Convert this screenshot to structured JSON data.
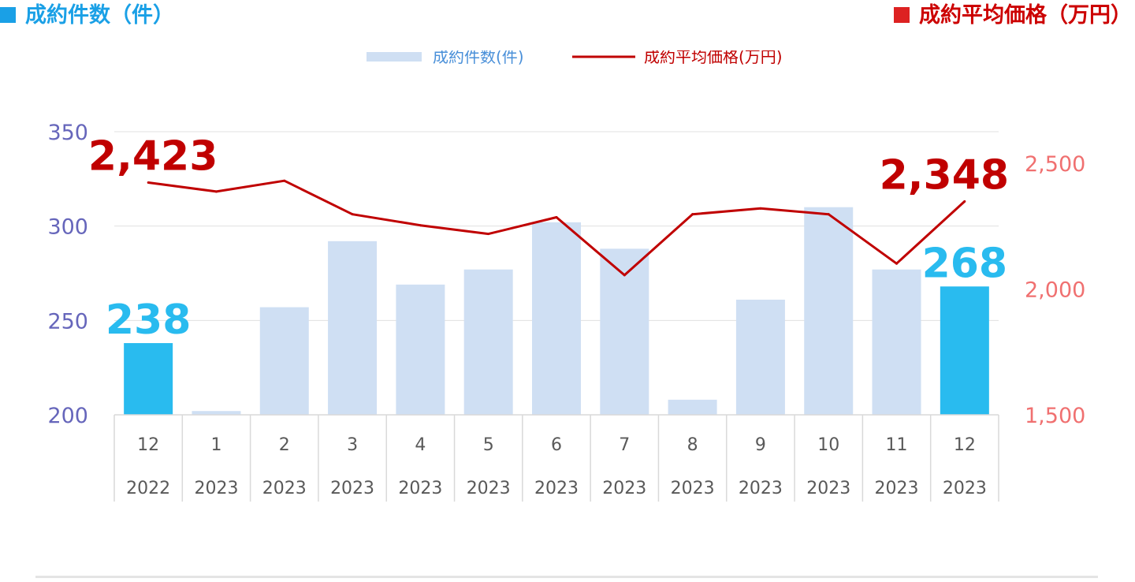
{
  "header": {
    "left_title": "成約件数（件）",
    "right_title": "成約平均価格（万円）"
  },
  "colors": {
    "bar_light": "#cfdff3",
    "bar_highlight": "#29bbef",
    "line": "#c00000",
    "left_axis_text": "#6666bb",
    "right_axis_text": "#f07070",
    "grid": "#e0e0e0"
  },
  "chart_data": {
    "type": "bar",
    "legend": {
      "bar_label": "成約件数(件)",
      "line_label": "成約平均価格(万円)",
      "position": "top"
    },
    "categories": [
      {
        "month": "12",
        "year": "2022"
      },
      {
        "month": "1",
        "year": "2023"
      },
      {
        "month": "2",
        "year": "2023"
      },
      {
        "month": "3",
        "year": "2023"
      },
      {
        "month": "4",
        "year": "2023"
      },
      {
        "month": "5",
        "year": "2023"
      },
      {
        "month": "6",
        "year": "2023"
      },
      {
        "month": "7",
        "year": "2023"
      },
      {
        "month": "8",
        "year": "2023"
      },
      {
        "month": "9",
        "year": "2023"
      },
      {
        "month": "10",
        "year": "2023"
      },
      {
        "month": "11",
        "year": "2023"
      },
      {
        "month": "12",
        "year": "2023"
      }
    ],
    "series": [
      {
        "name": "成約件数(件)",
        "type": "bar",
        "axis": "left",
        "values": [
          238,
          202,
          257,
          292,
          269,
          277,
          302,
          288,
          208,
          261,
          310,
          277,
          268
        ],
        "highlight": [
          0,
          12
        ]
      },
      {
        "name": "成約平均価格(万円)",
        "type": "line",
        "axis": "right",
        "values": [
          2423,
          2387,
          2430,
          2297,
          2253,
          2219,
          2285,
          2055,
          2297,
          2320,
          2297,
          2101,
          2348
        ]
      }
    ],
    "left_axis": {
      "ylim": [
        200,
        350
      ],
      "ticks": [
        {
          "value": 200,
          "label": "200"
        },
        {
          "value": 250,
          "label": "250"
        },
        {
          "value": 300,
          "label": "300"
        },
        {
          "value": 350,
          "label": "350"
        }
      ]
    },
    "right_axis": {
      "ylim": [
        1500,
        2625
      ],
      "ticks": [
        {
          "value": 1500,
          "label": "1,500"
        },
        {
          "value": 2000,
          "label": "2,000"
        },
        {
          "value": 2500,
          "label": "2,500"
        }
      ]
    },
    "annotations": [
      {
        "series": 0,
        "index": 0,
        "text": "238"
      },
      {
        "series": 0,
        "index": 12,
        "text": "268"
      },
      {
        "series": 1,
        "index": 0,
        "text": "2,423"
      },
      {
        "series": 1,
        "index": 12,
        "text": "2,348"
      }
    ],
    "grid": true
  }
}
